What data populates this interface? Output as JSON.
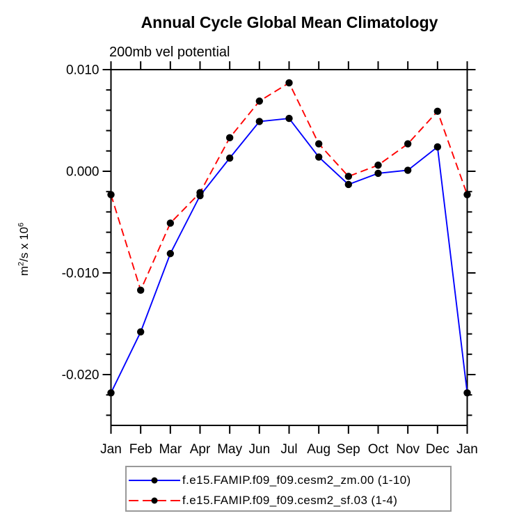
{
  "chart_data": {
    "type": "line",
    "title": "Annual Cycle Global Mean Climatology",
    "subtitle": "200mb vel potential",
    "ylabel": "m²/s x 10⁶",
    "ylabel_parts": [
      {
        "text": "m"
      },
      {
        "text": "2",
        "sup": true
      },
      {
        "text": "/s x 10"
      },
      {
        "text": "6",
        "sup": true
      }
    ],
    "categories": [
      "Jan",
      "Feb",
      "Mar",
      "Apr",
      "May",
      "Jun",
      "Jul",
      "Aug",
      "Sep",
      "Oct",
      "Nov",
      "Dec",
      "Jan"
    ],
    "xlabel": "",
    "ylim": [
      -0.025,
      0.01
    ],
    "yticks": [
      {
        "value": 0.01,
        "label": "0.010"
      },
      {
        "value": 0.0,
        "label": "0.000"
      },
      {
        "value": -0.01,
        "label": "-0.010"
      },
      {
        "value": -0.02,
        "label": "-0.020"
      }
    ],
    "ytick_minor_step": 0.002,
    "grid": false,
    "legend_position": "bottom",
    "axis_color": "#000000",
    "marker": "filled-circle",
    "marker_color": "#000000",
    "legend_border_color": "#999999",
    "series": [
      {
        "name": "f.e15.FAMIP.f09_f09.cesm2_zm.00 (1-10)",
        "color": "#0000ff",
        "line_style": "solid",
        "values": [
          -0.0218,
          -0.0158,
          -0.0081,
          -0.0024,
          0.0013,
          0.0049,
          0.0052,
          0.0014,
          -0.0013,
          -0.0002,
          0.0001,
          0.0024,
          -0.0218
        ]
      },
      {
        "name": "f.e15.FAMIP.f09_f09.cesm2_sf.03 (1-4)",
        "color": "#ff0000",
        "line_style": "dashed",
        "values": [
          -0.0023,
          -0.0117,
          -0.0051,
          -0.0021,
          0.0033,
          0.0069,
          0.0087,
          0.0027,
          -0.0005,
          0.0006,
          0.0027,
          0.0059,
          -0.0023
        ]
      }
    ]
  }
}
